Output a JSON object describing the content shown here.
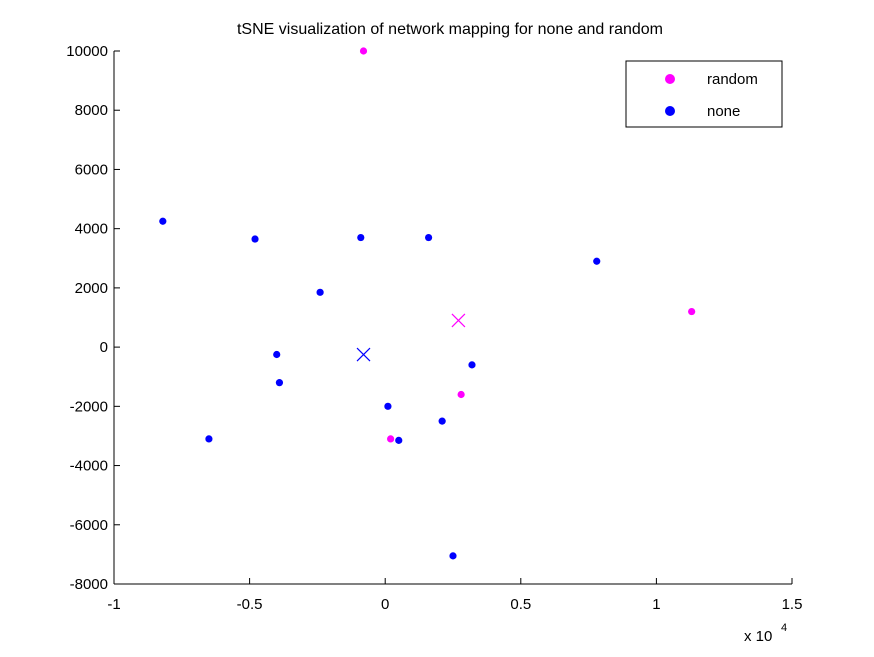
{
  "chart_data": {
    "type": "scatter",
    "title": "tSNE visualization of network mapping for none and random",
    "xlabel": "",
    "ylabel": "",
    "xlim": [
      -10000,
      15000
    ],
    "ylim": [
      -8000,
      10000
    ],
    "x_ticks": [
      -10000,
      -5000,
      0,
      5000,
      10000,
      15000
    ],
    "x_tick_labels": [
      "-1",
      "-0.5",
      "0",
      "0.5",
      "1",
      "1.5"
    ],
    "x_multiplier_label": "x 10",
    "x_multiplier_exponent": "4",
    "y_ticks": [
      -8000,
      -6000,
      -4000,
      -2000,
      0,
      2000,
      4000,
      6000,
      8000,
      10000
    ],
    "y_tick_labels": [
      "-8000",
      "-6000",
      "-4000",
      "-2000",
      "0",
      "2000",
      "4000",
      "6000",
      "8000",
      "10000"
    ],
    "grid": false,
    "legend_position": "top-right",
    "series": [
      {
        "name": "random",
        "color": "#ff00ff",
        "points": [
          [
            -800,
            10000
          ],
          [
            11300,
            1200
          ],
          [
            2800,
            -1600
          ],
          [
            200,
            -3100
          ]
        ],
        "centroid": [
          2700,
          900
        ]
      },
      {
        "name": "none",
        "color": "#0000ff",
        "points": [
          [
            -8200,
            4250
          ],
          [
            -4800,
            3650
          ],
          [
            -900,
            3700
          ],
          [
            1600,
            3700
          ],
          [
            7800,
            2900
          ],
          [
            -2400,
            1850
          ],
          [
            -4000,
            -250
          ],
          [
            -3900,
            -1200
          ],
          [
            3200,
            -600
          ],
          [
            100,
            -2000
          ],
          [
            2100,
            -2500
          ],
          [
            -6500,
            -3100
          ],
          [
            500,
            -3150
          ],
          [
            2500,
            -7050
          ]
        ],
        "centroid": [
          -800,
          -250
        ]
      }
    ]
  }
}
